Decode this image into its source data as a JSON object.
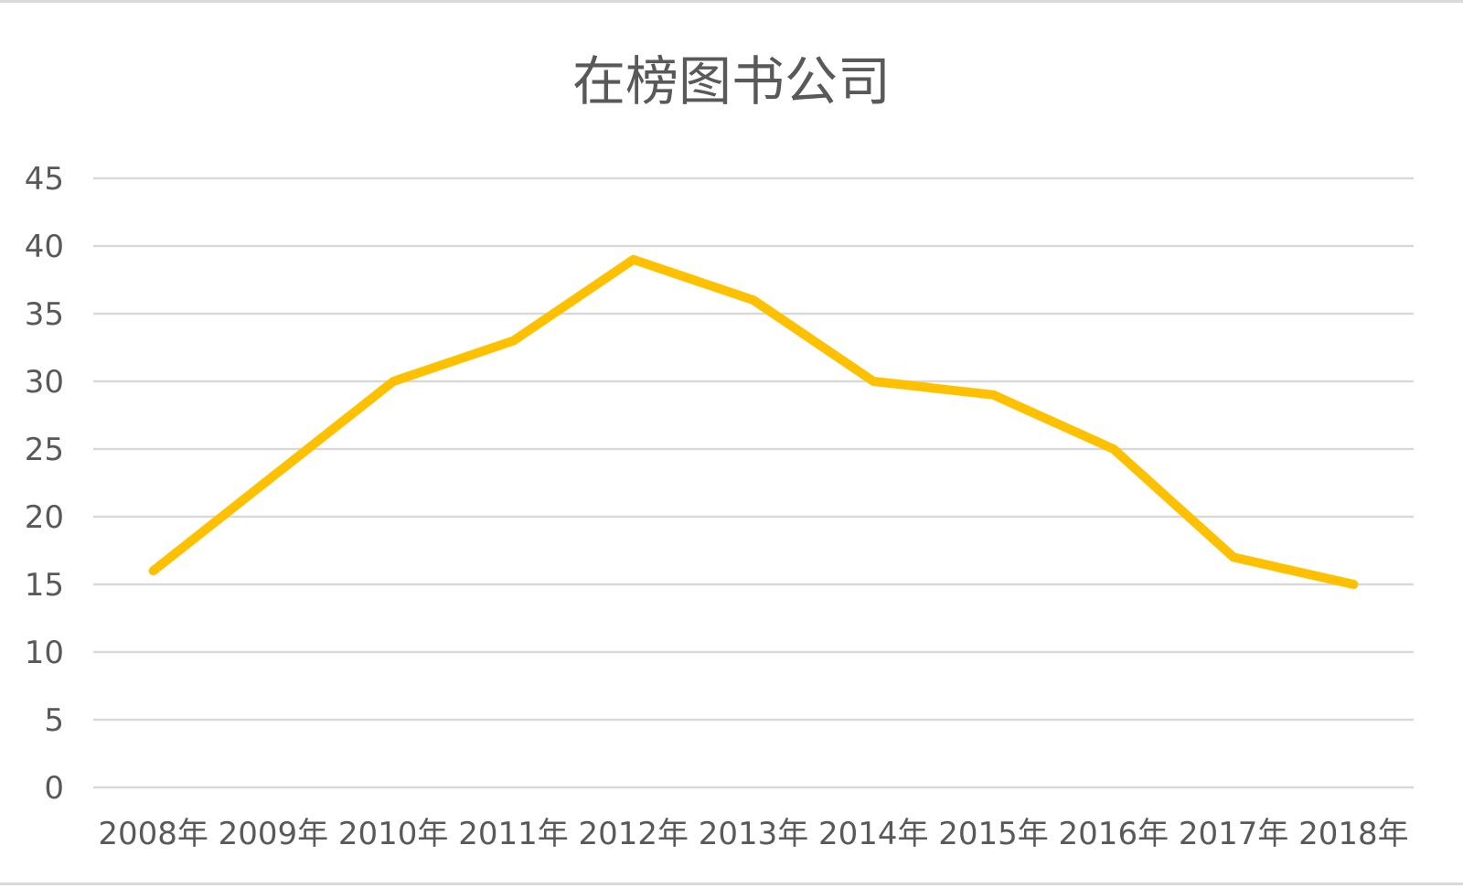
{
  "chart_data": {
    "type": "line",
    "title": "在榜图书公司",
    "xlabel": "",
    "ylabel": "",
    "categories": [
      "2008年",
      "2009年",
      "2010年",
      "2011年",
      "2012年",
      "2013年",
      "2014年",
      "2015年",
      "2016年",
      "2017年",
      "2018年"
    ],
    "series": [
      {
        "values": [
          16,
          23,
          30,
          33,
          39,
          36,
          30,
          29,
          25,
          17,
          15
        ],
        "color": "#FFC000"
      }
    ],
    "ylim": [
      0,
      45
    ],
    "yticks": [
      "0",
      "5",
      "10",
      "15",
      "20",
      "25",
      "30",
      "35",
      "40",
      "45"
    ],
    "grid": true,
    "legend": "none"
  }
}
